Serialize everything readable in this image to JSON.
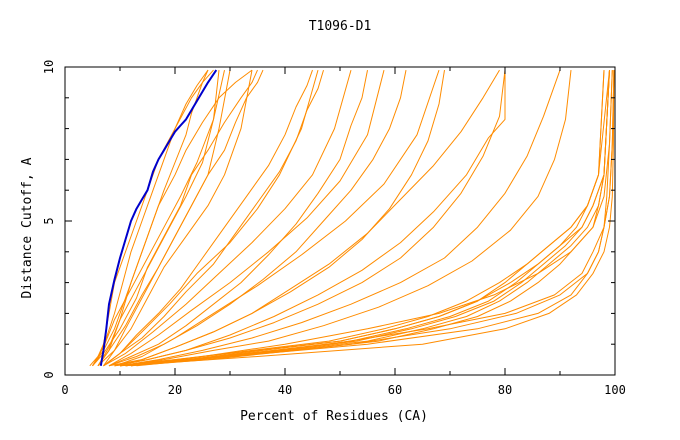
{
  "chart_data": {
    "type": "line",
    "title": "T1096-D1",
    "xlabel": "Percent of Residues (CA)",
    "ylabel": "Distance Cutoff, A",
    "xlim": [
      0,
      100
    ],
    "ylim": [
      0,
      10
    ],
    "xticks": [
      "0",
      "20",
      "40",
      "60",
      "80",
      "100"
    ],
    "yticks": [
      "0",
      "5",
      "10"
    ],
    "grid": false,
    "legend": "none",
    "colors": {
      "models": "#ff8c00",
      "highlight": "#0000cc",
      "axes": "#000000"
    },
    "series": [
      {
        "x": [
          5,
          6,
          7,
          8,
          9,
          11,
          13,
          15,
          17,
          20,
          23,
          25,
          27
        ],
        "y": [
          0.3,
          0.5,
          1,
          2,
          3,
          4,
          5,
          6,
          7,
          8,
          9,
          9.5,
          9.9
        ]
      },
      {
        "x": [
          4.5,
          6,
          7.5,
          9,
          10.5,
          12,
          14,
          16,
          18,
          20,
          22,
          24,
          26
        ],
        "y": [
          0.3,
          0.6,
          1.2,
          2,
          3,
          4,
          5,
          6,
          7,
          8,
          8.8,
          9.4,
          9.9
        ]
      },
      {
        "x": [
          5,
          7,
          9,
          11,
          13,
          15,
          17,
          20,
          22,
          25,
          28,
          31,
          34
        ],
        "y": [
          0.3,
          0.8,
          1.5,
          2.5,
          3.5,
          4.5,
          5.5,
          6.5,
          7.3,
          8.2,
          9,
          9.5,
          9.9
        ]
      },
      {
        "x": [
          5,
          7,
          10,
          13,
          15,
          18,
          21,
          23,
          26,
          29,
          32,
          34,
          35
        ],
        "y": [
          0.3,
          0.7,
          1.5,
          2.5,
          3.5,
          4.5,
          5.5,
          6.5,
          7.3,
          8.2,
          9,
          9.5,
          9.9
        ]
      },
      {
        "x": [
          6,
          8,
          10,
          12,
          14,
          16,
          18,
          20,
          22,
          23,
          24,
          25,
          26
        ],
        "y": [
          0.3,
          0.8,
          1.8,
          3,
          4,
          5,
          6,
          6.9,
          7.8,
          8.5,
          9,
          9.5,
          9.9
        ]
      },
      {
        "x": [
          6,
          8,
          11,
          14,
          17,
          20,
          23,
          26,
          29,
          31,
          33,
          35,
          36
        ],
        "y": [
          0.3,
          0.8,
          1.6,
          2.6,
          3.5,
          4.5,
          5.5,
          6.5,
          7.3,
          8.2,
          9,
          9.5,
          9.9
        ]
      },
      {
        "x": [
          7,
          10,
          13,
          17,
          21,
          25,
          29,
          33,
          37,
          40,
          42,
          44,
          45
        ],
        "y": [
          0.3,
          0.7,
          1.3,
          2,
          2.8,
          3.8,
          4.8,
          5.8,
          6.8,
          7.8,
          8.7,
          9.4,
          9.9
        ]
      },
      {
        "x": [
          7,
          10,
          14,
          18,
          22,
          27,
          31,
          35,
          39,
          42,
          44,
          46,
          47
        ],
        "y": [
          0.3,
          0.7,
          1.2,
          1.9,
          2.7,
          3.6,
          4.6,
          5.6,
          6.6,
          7.6,
          8.6,
          9.3,
          9.9
        ]
      },
      {
        "x": [
          8,
          12,
          17,
          22,
          27,
          32,
          37,
          42,
          46,
          50,
          52,
          54,
          55
        ],
        "y": [
          0.3,
          0.6,
          1,
          1.6,
          2.3,
          3,
          3.9,
          4.9,
          5.9,
          7,
          8.1,
          9,
          9.9
        ]
      },
      {
        "x": [
          8,
          13,
          18,
          24,
          30,
          36,
          42,
          47,
          52,
          56,
          59,
          61,
          62
        ],
        "y": [
          0.3,
          0.6,
          1,
          1.6,
          2.3,
          3.1,
          4,
          5,
          6,
          7,
          8,
          9,
          9.9
        ]
      },
      {
        "x": [
          9,
          14,
          20,
          27,
          34,
          41,
          48,
          54,
          59,
          63,
          66,
          68,
          69
        ],
        "y": [
          0.3,
          0.5,
          0.9,
          1.4,
          2,
          2.7,
          3.5,
          4.4,
          5.4,
          6.5,
          7.6,
          8.8,
          9.9
        ]
      },
      {
        "x": [
          9,
          15,
          22,
          30,
          38,
          46,
          54,
          61,
          67,
          72,
          76,
          79,
          80
        ],
        "y": [
          0.3,
          0.5,
          0.8,
          1.2,
          1.7,
          2.3,
          3,
          3.8,
          4.8,
          5.9,
          7.1,
          8.4,
          9.9
        ]
      },
      {
        "x": [
          10,
          17,
          25,
          34,
          43,
          52,
          61,
          69,
          75,
          80,
          84,
          87,
          90
        ],
        "y": [
          0.3,
          0.5,
          0.8,
          1.2,
          1.7,
          2.3,
          3,
          3.8,
          4.8,
          5.9,
          7.1,
          8.4,
          9.9
        ]
      },
      {
        "x": [
          10,
          18,
          27,
          37,
          47,
          57,
          66,
          74,
          81,
          86,
          89,
          91,
          92
        ],
        "y": [
          0.3,
          0.5,
          0.8,
          1.1,
          1.6,
          2.2,
          2.9,
          3.7,
          4.7,
          5.8,
          7,
          8.3,
          9.9
        ]
      },
      {
        "x": [
          8,
          14,
          20,
          27,
          34,
          41,
          48,
          55,
          61,
          67,
          72,
          76,
          79
        ],
        "y": [
          0.3,
          0.5,
          0.9,
          1.4,
          2,
          2.8,
          3.6,
          4.6,
          5.7,
          6.8,
          7.9,
          9,
          9.9
        ]
      },
      {
        "x": [
          9,
          15,
          22,
          30,
          38,
          46,
          54,
          61,
          67,
          73,
          77,
          80,
          80,
          80
        ],
        "y": [
          0.3,
          0.5,
          0.8,
          1.3,
          1.9,
          2.6,
          3.4,
          4.3,
          5.3,
          6.5,
          7.7,
          8.3,
          9,
          9.9
        ]
      },
      {
        "x": [
          10,
          20,
          35,
          50,
          60,
          68,
          75,
          80,
          84,
          88,
          92,
          95,
          97,
          98
        ],
        "y": [
          0.3,
          0.5,
          0.8,
          1.1,
          1.5,
          1.9,
          2.4,
          3,
          3.6,
          4.2,
          4.8,
          5.5,
          6.5,
          9.9
        ]
      },
      {
        "x": [
          10,
          22,
          38,
          52,
          62,
          70,
          77,
          82,
          86,
          90,
          93,
          95,
          97,
          98
        ],
        "y": [
          0.3,
          0.5,
          0.8,
          1.1,
          1.5,
          1.9,
          2.4,
          3,
          3.6,
          4.2,
          4.8,
          5.5,
          6.5,
          9.9
        ]
      },
      {
        "x": [
          9,
          20,
          34,
          48,
          58,
          66,
          73,
          79,
          84,
          88,
          92,
          95,
          97,
          99
        ],
        "y": [
          0.3,
          0.5,
          0.8,
          1.1,
          1.5,
          1.9,
          2.4,
          3,
          3.6,
          4.2,
          4.8,
          5.5,
          6.5,
          9.9
        ]
      },
      {
        "x": [
          11,
          24,
          40,
          55,
          65,
          73,
          79,
          84,
          88,
          92,
          95,
          97,
          98,
          99
        ],
        "y": [
          0.3,
          0.5,
          0.8,
          1.1,
          1.5,
          1.9,
          2.4,
          3,
          3.6,
          4.2,
          4.8,
          5.5,
          6.5,
          9.9
        ]
      },
      {
        "x": [
          12,
          26,
          42,
          57,
          67,
          75,
          81,
          86,
          90,
          93,
          96,
          97,
          98,
          99
        ],
        "y": [
          0.3,
          0.5,
          0.8,
          1.1,
          1.5,
          1.9,
          2.4,
          3,
          3.6,
          4.2,
          4.8,
          5.5,
          6.5,
          9.9
        ]
      },
      {
        "x": [
          10,
          22,
          36,
          50,
          60,
          68,
          75,
          81,
          86,
          90,
          94,
          96,
          98,
          99
        ],
        "y": [
          0.3,
          0.5,
          0.8,
          1.1,
          1.5,
          1.9,
          2.4,
          3,
          3.6,
          4.2,
          4.8,
          5.5,
          6.5,
          9.9
        ]
      },
      {
        "x": [
          11,
          23,
          39,
          53,
          63,
          71,
          78,
          83,
          87,
          91,
          94,
          96,
          98,
          99
        ],
        "y": [
          0.3,
          0.5,
          0.8,
          1.1,
          1.5,
          1.9,
          2.4,
          3,
          3.6,
          4.2,
          4.8,
          5.5,
          6.5,
          9.9
        ]
      },
      {
        "x": [
          10,
          35,
          65,
          80,
          88,
          93,
          96,
          98,
          99,
          99.5,
          99.7,
          99.8
        ],
        "y": [
          0.3,
          0.6,
          1,
          1.5,
          2,
          2.6,
          3.3,
          4,
          4.8,
          5.8,
          7.5,
          9.9
        ]
      },
      {
        "x": [
          12,
          30,
          55,
          75,
          86,
          92,
          95,
          97,
          98,
          99,
          99.5,
          99.8
        ],
        "y": [
          0.3,
          0.6,
          1,
          1.5,
          2,
          2.6,
          3.3,
          4,
          4.8,
          5.8,
          7.5,
          9.9
        ]
      },
      {
        "x": [
          11,
          28,
          48,
          66,
          80,
          89,
          94,
          96,
          98,
          98.5,
          99,
          99.5
        ],
        "y": [
          0.3,
          0.6,
          1,
          1.5,
          2,
          2.6,
          3.3,
          4,
          4.8,
          5.8,
          7.5,
          9.9
        ]
      },
      {
        "x": [
          12,
          25,
          40,
          55,
          68,
          78,
          86,
          92,
          96,
          98,
          99,
          99.5
        ],
        "y": [
          0.3,
          0.6,
          1,
          1.5,
          2,
          2.6,
          3.3,
          4,
          4.8,
          5.8,
          7.5,
          9.9
        ]
      },
      {
        "x": [
          13,
          30,
          52,
          70,
          82,
          90,
          95,
          97,
          98,
          99,
          99.5,
          99.8
        ],
        "y": [
          0.3,
          0.6,
          1,
          1.5,
          2,
          2.6,
          3.3,
          4,
          4.8,
          5.8,
          7.5,
          9.9
        ]
      },
      {
        "x": [
          7,
          9,
          11,
          14,
          17,
          20,
          23,
          26,
          28,
          30
        ],
        "y": [
          0.3,
          0.8,
          1.5,
          2.5,
          3.5,
          4.5,
          5.5,
          6.5,
          8,
          9.9
        ]
      },
      {
        "x": [
          6,
          9,
          12,
          15,
          18,
          22,
          26,
          29,
          32,
          34
        ],
        "y": [
          0.3,
          0.8,
          1.5,
          2.5,
          3.5,
          4.5,
          5.5,
          6.5,
          8,
          9.9
        ]
      },
      {
        "x": [
          7,
          10,
          14,
          19,
          24,
          30,
          35,
          39,
          43,
          46
        ],
        "y": [
          0.3,
          0.7,
          1.4,
          2.3,
          3.3,
          4.3,
          5.4,
          6.5,
          8,
          9.9
        ]
      },
      {
        "x": [
          8,
          12,
          17,
          23,
          30,
          37,
          44,
          50,
          55,
          58
        ],
        "y": [
          0.3,
          0.7,
          1.3,
          2.1,
          3,
          4,
          5.1,
          6.3,
          7.8,
          9.9
        ]
      },
      {
        "x": [
          9,
          14,
          20,
          27,
          35,
          43,
          51,
          58,
          64,
          68
        ],
        "y": [
          0.3,
          0.6,
          1.2,
          2,
          2.9,
          3.9,
          5,
          6.2,
          7.8,
          9.9
        ]
      },
      {
        "x": [
          6,
          8,
          10,
          13,
          16,
          19,
          22,
          25,
          27,
          28
        ],
        "y": [
          0.3,
          0.9,
          1.8,
          2.8,
          3.8,
          4.8,
          5.8,
          6.9,
          8.3,
          9.9
        ]
      },
      {
        "x": [
          5,
          7,
          9,
          12,
          15,
          18,
          21,
          24,
          27,
          29
        ],
        "y": [
          0.3,
          0.9,
          1.8,
          2.8,
          3.8,
          4.8,
          5.8,
          6.9,
          8.3,
          9.9
        ]
      },
      {
        "x": [
          7,
          11,
          16,
          22,
          28,
          34,
          40,
          45,
          49,
          52
        ],
        "y": [
          0.3,
          0.7,
          1.4,
          2.3,
          3.3,
          4.3,
          5.4,
          6.5,
          8,
          9.9
        ]
      }
    ],
    "highlight": {
      "x": [
        6.5,
        7,
        7.5,
        8,
        9,
        10,
        11,
        12,
        13,
        14,
        15,
        16,
        17,
        18,
        19,
        20,
        21,
        22,
        23,
        24,
        25,
        26,
        27.5
      ],
      "y": [
        0.3,
        0.8,
        1.5,
        2.3,
        3.1,
        3.8,
        4.4,
        5.0,
        5.4,
        5.7,
        6.0,
        6.6,
        7.0,
        7.3,
        7.6,
        7.9,
        8.1,
        8.3,
        8.6,
        8.9,
        9.2,
        9.5,
        9.9
      ]
    }
  }
}
